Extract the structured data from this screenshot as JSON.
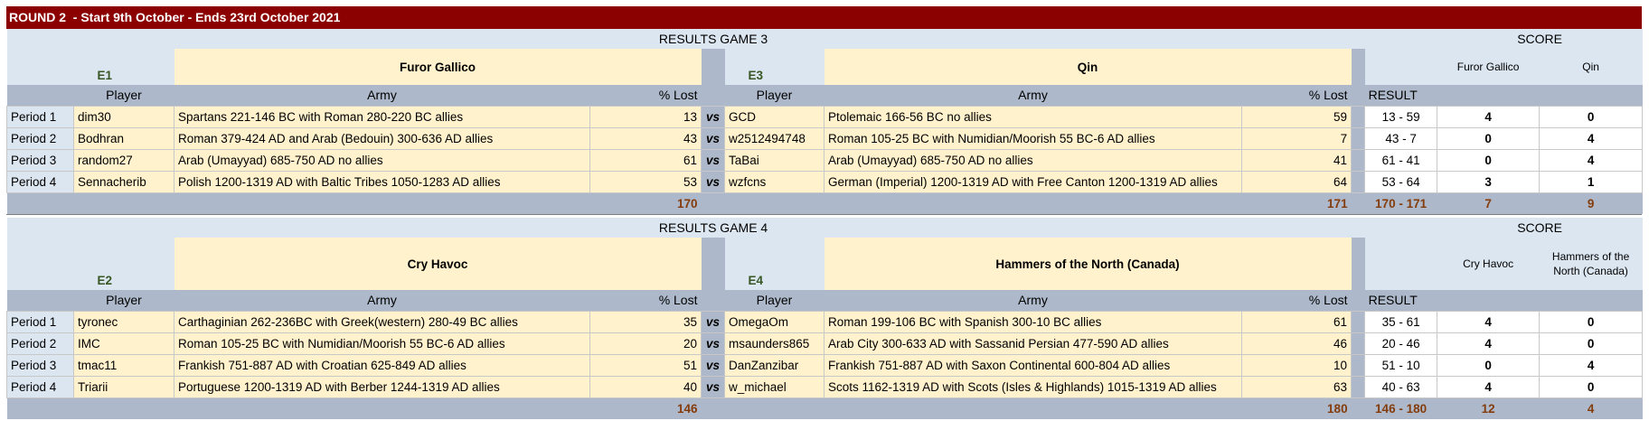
{
  "header": {
    "title": "ROUND 2  - Start 9th October - Ends 23rd October 2021"
  },
  "games": [
    {
      "title": "RESULTS GAME 3",
      "score_title": "SCORE",
      "teams": [
        {
          "seed": "E1",
          "name": "Furor Gallico"
        },
        {
          "seed": "E3",
          "name": "Qin"
        }
      ],
      "columns": {
        "player": "Player",
        "army": "Army",
        "lost": "% Lost",
        "vs": "vs",
        "result": "RESULT"
      },
      "rows": [
        {
          "period": "Period 1",
          "player1": "dim30",
          "army1": "Spartans 221-146 BC with Roman 280-220 BC allies",
          "lost1": 13,
          "player2": "GCD",
          "army2": "Ptolemaic 166-56 BC no allies",
          "lost2": 59,
          "result": "13 - 59",
          "score1": 4,
          "score2": 0
        },
        {
          "period": "Period 2",
          "player1": "Bodhran",
          "army1": "Roman 379-424 AD and Arab (Bedouin) 300-636 AD allies",
          "lost1": 43,
          "player2": "w2512494748",
          "army2": "Roman 105-25 BC with Numidian/Moorish 55 BC-6 AD allies",
          "lost2": 7,
          "result": "43 - 7",
          "score1": 0,
          "score2": 4
        },
        {
          "period": "Period 3",
          "player1": "random27",
          "army1": "Arab (Umayyad) 685-750 AD no allies",
          "lost1": 61,
          "player2": "TaBai",
          "army2": "Arab (Umayyad) 685-750 AD no allies",
          "lost2": 41,
          "result": "61 - 41",
          "score1": 0,
          "score2": 4
        },
        {
          "period": "Period 4",
          "player1": "Sennacherib",
          "army1": "Polish 1200-1319 AD with Baltic Tribes 1050-1283 AD allies",
          "lost1": 53,
          "player2": "wzfcns",
          "army2": "German (Imperial) 1200-1319 AD with Free Canton 1200-1319 AD allies",
          "lost2": 64,
          "result": "53 - 64",
          "score1": 3,
          "score2": 1
        }
      ],
      "totals": {
        "lost1": 170,
        "lost2": 171,
        "result": "170 - 171",
        "score1": 7,
        "score2": 9
      }
    },
    {
      "title": "RESULTS GAME 4",
      "score_title": "SCORE",
      "teams": [
        {
          "seed": "E2",
          "name": "Cry Havoc"
        },
        {
          "seed": "E4",
          "name": "Hammers of the North (Canada)"
        }
      ],
      "columns": {
        "player": "Player",
        "army": "Army",
        "lost": "% Lost",
        "vs": "vs",
        "result": "RESULT"
      },
      "rows": [
        {
          "period": "Period 1",
          "player1": "tyronec",
          "army1": "Carthaginian 262-236BC with Greek(western) 280-49 BC allies",
          "lost1": 35,
          "player2": "OmegaOm",
          "army2": "Roman 199-106 BC with Spanish 300-10 BC allies",
          "lost2": 61,
          "result": "35 - 61",
          "score1": 4,
          "score2": 0
        },
        {
          "period": "Period 2",
          "player1": "IMC",
          "army1": "Roman 105-25 BC with Numidian/Moorish 55 BC-6 AD allies",
          "lost1": 20,
          "player2": "msaunders865",
          "army2": "Arab City 300-633 AD with Sassanid Persian 477-590 AD allies",
          "lost2": 46,
          "result": "20 - 46",
          "score1": 4,
          "score2": 0
        },
        {
          "period": "Period 3",
          "player1": "tmac11",
          "army1": "Frankish 751-887 AD with Croatian 625-849 AD allies",
          "lost1": 51,
          "player2": "DanZanzibar",
          "army2": "Frankish 751-887 AD with Saxon Continental 600-804 AD allies",
          "lost2": 10,
          "result": "51 - 10",
          "score1": 0,
          "score2": 4
        },
        {
          "period": "Period 4",
          "player1": "Triarii",
          "army1": "Portuguese 1200-1319 AD with Berber 1244-1319 AD allies",
          "lost1": 40,
          "player2": "w_michael",
          "army2": "Scots 1162-1319 AD with Scots (Isles & Highlands) 1015-1319 AD allies",
          "lost2": 63,
          "result": "40 - 63",
          "score1": 4,
          "score2": 0
        }
      ],
      "totals": {
        "lost1": 146,
        "lost2": 180,
        "result": "146 - 180",
        "score1": 12,
        "score2": 4
      }
    }
  ]
}
